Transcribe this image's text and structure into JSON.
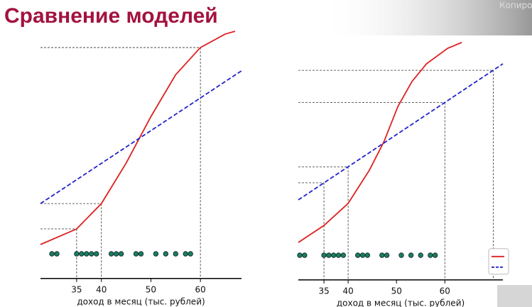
{
  "title": "Сравнение моделей",
  "overlay_text": "Копиро",
  "chart_data": [
    {
      "type": "line",
      "xlabel": "доход в месяц (тыс. рублей)",
      "xlim": [
        27.7,
        68.3
      ],
      "xticks": [
        35,
        40,
        50,
        60
      ],
      "ylim": [
        -0.1,
        1.0
      ],
      "series": [
        {
          "color": "#dd2020",
          "line_style": "solid",
          "x": [
            27.7,
            35,
            40,
            45,
            50,
            55,
            60,
            65,
            67
          ],
          "values": [
            0.04,
            0.107,
            0.216,
            0.39,
            0.59,
            0.77,
            0.887,
            0.945,
            0.957
          ]
        },
        {
          "color": "#2222cc",
          "line_style": "dashed",
          "x": [
            27.7,
            68.3
          ],
          "values": [
            0.216,
            0.787
          ]
        }
      ],
      "points": {
        "color": "#1a7f5a",
        "x": [
          30,
          31,
          35,
          36,
          37,
          38,
          39,
          42,
          43,
          44,
          47,
          48,
          51,
          53,
          55,
          57,
          58
        ],
        "values": [
          0,
          0,
          0,
          0,
          0,
          0,
          0,
          0,
          0,
          0,
          0,
          0,
          0,
          0,
          0,
          0,
          0
        ]
      },
      "guide_x": [
        35,
        40,
        60
      ],
      "guide_series": 0,
      "legend": false
    },
    {
      "type": "line",
      "xlabel": "доход в месяц (тыс. рублей)",
      "xlim": [
        29.7,
        72
      ],
      "xticks": [
        35,
        40,
        50,
        60
      ],
      "ylim": [
        -0.1,
        1.0
      ],
      "series": [
        {
          "color": "#dd2020",
          "line_style": "solid",
          "x": [
            29.7,
            35,
            40,
            44.4,
            47.4,
            50.3,
            53.2,
            56.2,
            60.6,
            63.5
          ],
          "values": [
            0.055,
            0.128,
            0.223,
            0.366,
            0.488,
            0.64,
            0.747,
            0.823,
            0.89,
            0.915
          ]
        },
        {
          "color": "#2222cc",
          "line_style": "dashed",
          "x": [
            29.7,
            72
          ],
          "values": [
            0.238,
            0.823
          ]
        }
      ],
      "points": {
        "color": "#1a7f5a",
        "x": [
          30,
          31,
          35,
          36,
          37,
          38,
          39,
          42,
          43,
          44,
          47,
          48,
          51,
          53,
          55,
          57,
          58
        ],
        "values": [
          0,
          0,
          0,
          0,
          0,
          0,
          0,
          0,
          0,
          0,
          0,
          0,
          0,
          0,
          0,
          0,
          0
        ]
      },
      "guide_x": [
        35,
        40,
        60,
        70
      ],
      "guide_series": 1,
      "legend": true
    }
  ]
}
